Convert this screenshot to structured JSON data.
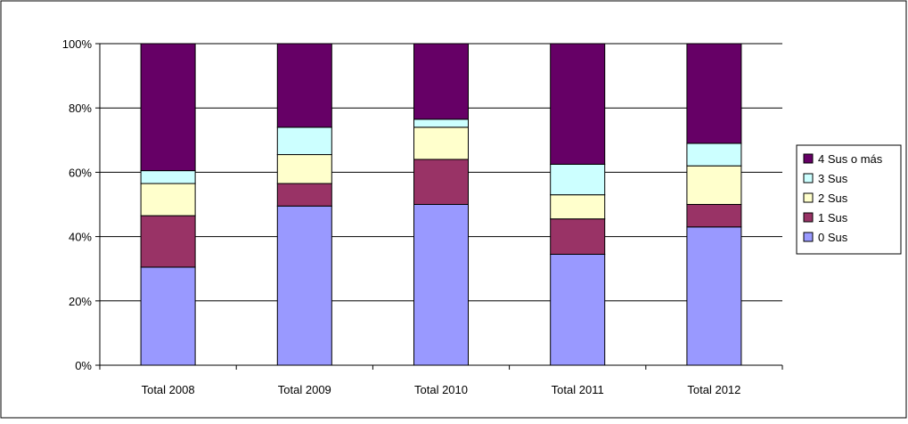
{
  "chart_data": {
    "type": "bar",
    "stacked": true,
    "categories": [
      "Total 2008",
      "Total 2009",
      "Total 2010",
      "Total 2011",
      "Total 2012"
    ],
    "y_tick_labels": [
      "0%",
      "20%",
      "40%",
      "60%",
      "80%",
      "100%"
    ],
    "ylim": [
      0,
      100
    ],
    "grid": true,
    "legend_position": "right",
    "series": [
      {
        "name": "0 Sus",
        "color": "#9999FF",
        "values": [
          30.5,
          49.5,
          50.0,
          34.5,
          43.0
        ]
      },
      {
        "name": "1 Sus",
        "color": "#993366",
        "values": [
          16.0,
          7.0,
          14.0,
          11.0,
          7.0
        ]
      },
      {
        "name": "2 Sus",
        "color": "#FFFFCC",
        "values": [
          10.0,
          9.0,
          10.0,
          7.5,
          12.0
        ]
      },
      {
        "name": "3 Sus",
        "color": "#CCFFFF",
        "values": [
          4.0,
          8.5,
          2.5,
          9.5,
          7.0
        ]
      },
      {
        "name": "4 Sus o más",
        "color": "#660066",
        "values": [
          39.5,
          26.0,
          23.5,
          37.5,
          31.0
        ]
      }
    ]
  }
}
